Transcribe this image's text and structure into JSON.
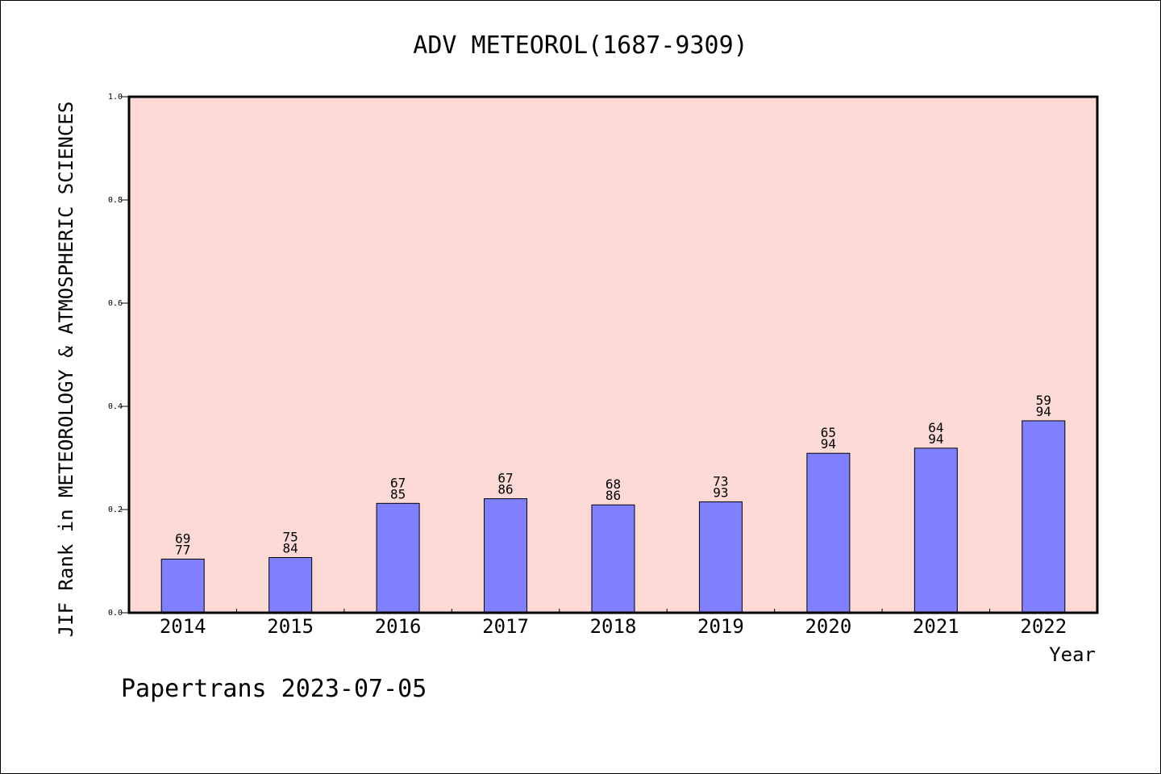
{
  "chart_data": {
    "type": "bar",
    "title": "ADV METEOROL(1687-9309)",
    "xlabel": "Year",
    "ylabel": "JIF Rank in METEOROLOGY & ATMOSPHERIC SCIENCES",
    "ylim": [
      0,
      1.0
    ],
    "yticks": [
      "0.0",
      "0.2",
      "0.4",
      "0.6",
      "0.8",
      "1.0"
    ],
    "categories": [
      "2014",
      "2015",
      "2016",
      "2017",
      "2018",
      "2019",
      "2020",
      "2021",
      "2022"
    ],
    "values": [
      0.104,
      0.107,
      0.212,
      0.221,
      0.209,
      0.215,
      0.309,
      0.319,
      0.372
    ],
    "rank": [
      "69",
      "75",
      "67",
      "67",
      "68",
      "73",
      "65",
      "64",
      "59"
    ],
    "total": [
      "77",
      "84",
      "85",
      "86",
      "86",
      "93",
      "94",
      "94",
      "94"
    ],
    "colors": {
      "plot_background": "#FDDAD6",
      "bar": "#8080FF"
    },
    "grid": false,
    "legend": "none"
  },
  "footer": "Papertrans 2023-07-05"
}
